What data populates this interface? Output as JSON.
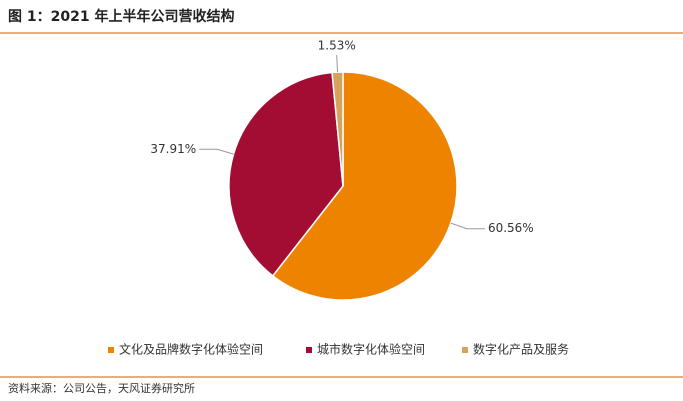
{
  "chart_data": {
    "type": "pie",
    "title": "图 1：2021 年上半年公司营收结构",
    "categories": [
      "文化及品牌数字化体验空间",
      "城市数字化体验空间",
      "数字化产品及服务"
    ],
    "values": [
      60.56,
      37.91,
      1.53
    ],
    "value_labels": [
      "60.56%",
      "37.91%",
      "1.53%"
    ],
    "colors": [
      "#ee8300",
      "#a30d33",
      "#d6a35d"
    ],
    "legend": "bottom",
    "source": "资料来源：公司公告，天风证券研究所"
  }
}
